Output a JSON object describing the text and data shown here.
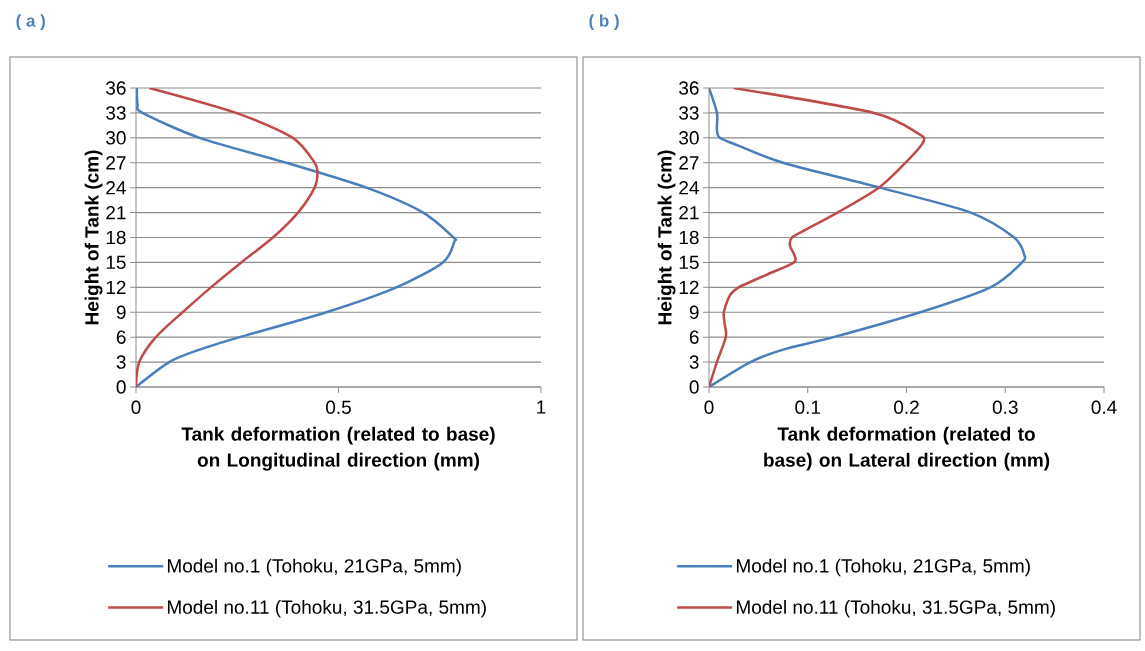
{
  "chart_data": [
    {
      "type": "line",
      "title": "( a )",
      "xlabel": "Tank deformation (related to base) on Longitudinal direction (mm)",
      "ylabel": "Height of Tank (cm)",
      "series": [
        {
          "name": "Model no.1 (Tohoku, 21GPa, 5mm)",
          "color": "#4a7ebb",
          "x": [
            0,
            0.082,
            0.157,
            0.256,
            0.47,
            0.643,
            0.758,
            0.786,
            0.784,
            0.709,
            0.569,
            0.371,
            0.157,
            0.016,
            0.004,
            0.002
          ],
          "values": [
            0,
            3,
            4.5,
            6,
            9,
            12,
            15,
            17.5,
            18,
            21,
            24,
            27,
            30,
            33,
            34,
            36
          ]
        },
        {
          "name": "Model no.11 (Tohoku, 31.5GPa, 5mm)",
          "color": "#be4b48",
          "x": [
            0,
            0.008,
            0.049,
            0.115,
            0.185,
            0.26,
            0.338,
            0.4,
            0.441,
            0.448,
            0.441,
            0.387,
            0.247,
            0.033
          ],
          "values": [
            0,
            3,
            6,
            9,
            12,
            15,
            18,
            21,
            24,
            25.8,
            27,
            30,
            33,
            36
          ]
        }
      ],
      "xlim": [
        0,
        1
      ],
      "xticks": [
        0,
        0.5,
        1
      ],
      "ylim": [
        0,
        36
      ],
      "yticks": [
        0,
        3,
        6,
        9,
        12,
        15,
        18,
        21,
        24,
        27,
        30,
        33,
        36
      ],
      "grid": "y",
      "legend": "bottom"
    },
    {
      "type": "line",
      "title": "( b )",
      "xlabel": "Tank deformation (related to base) on Lateral direction (mm)",
      "ylabel": "Height of Tank (cm)",
      "series": [
        {
          "name": "Model no.1 (Tohoku, 21GPa, 5mm)",
          "color": "#4a7ebb",
          "x": [
            0,
            0.042,
            0.075,
            0.126,
            0.214,
            0.285,
            0.317,
            0.319,
            0.309,
            0.265,
            0.173,
            0.075,
            0.031,
            0.011,
            0.008,
            0.008,
            0
          ],
          "values": [
            0,
            3,
            4.5,
            6,
            9,
            12,
            15,
            16,
            18,
            21,
            24,
            27,
            29,
            30,
            31,
            33,
            36
          ]
        },
        {
          "name": "Model no.11 (Tohoku, 31.5GPa, 5mm)",
          "color": "#be4b48",
          "x": [
            0,
            0.008,
            0.017,
            0.016,
            0.015,
            0.021,
            0.03,
            0.058,
            0.086,
            0.086,
            0.082,
            0.084,
            0.099,
            0.13,
            0.172,
            0.199,
            0.217,
            0.212,
            0.167,
            0.025
          ],
          "values": [
            0,
            3,
            6,
            7.5,
            9,
            11,
            12,
            13.5,
            15,
            16,
            17,
            18,
            19,
            21,
            24,
            27,
            29.5,
            30.5,
            33,
            36
          ]
        }
      ],
      "xlim": [
        0,
        0.4
      ],
      "xticks": [
        0,
        0.1,
        0.2,
        0.3,
        0.4
      ],
      "ylim": [
        0,
        36
      ],
      "yticks": [
        0,
        3,
        6,
        9,
        12,
        15,
        18,
        21,
        24,
        27,
        30,
        33,
        36
      ],
      "grid": "y",
      "legend": "bottom"
    }
  ]
}
